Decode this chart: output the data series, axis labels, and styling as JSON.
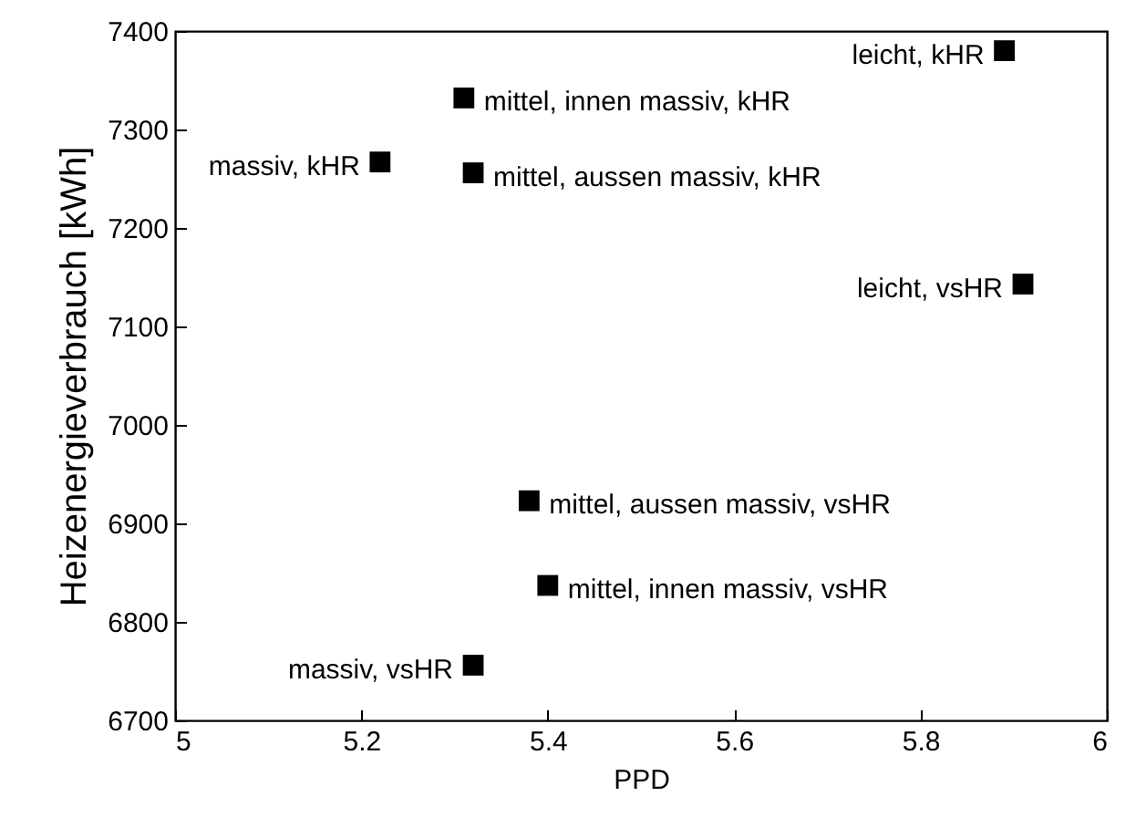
{
  "chart_data": {
    "type": "scatter",
    "xlabel": "PPD",
    "ylabel": "Heizenergieverbrauch [kWh]",
    "xlim": [
      5,
      6
    ],
    "xticks": [
      5,
      5.2,
      5.4,
      5.6,
      5.8,
      6
    ],
    "ylim": [
      6700,
      7400
    ],
    "yticks": [
      6700,
      6800,
      6900,
      7000,
      7100,
      7200,
      7300,
      7400
    ],
    "marker": "square",
    "series": [
      {
        "color": "#000000",
        "x": [
          5.22,
          5.89,
          5.32,
          5.91
        ],
        "values": [
          7267,
          7380,
          6756,
          7143
        ],
        "value_labels": [
          "massiv, kHR",
          "leicht, kHR",
          "massiv, vsHR",
          "leicht, vsHR"
        ]
      },
      {
        "color": "#000000",
        "x": [
          5.31,
          5.32,
          5.38,
          5.4
        ],
        "values": [
          7332,
          7256,
          6923,
          6837
        ],
        "value_labels": [
          "mittel, innen massiv, kHR",
          "mittel, aussen massiv, kHR",
          "mittel, aussen massiv, vsHR",
          "mittel, innen massiv, vsHR"
        ]
      }
    ]
  }
}
